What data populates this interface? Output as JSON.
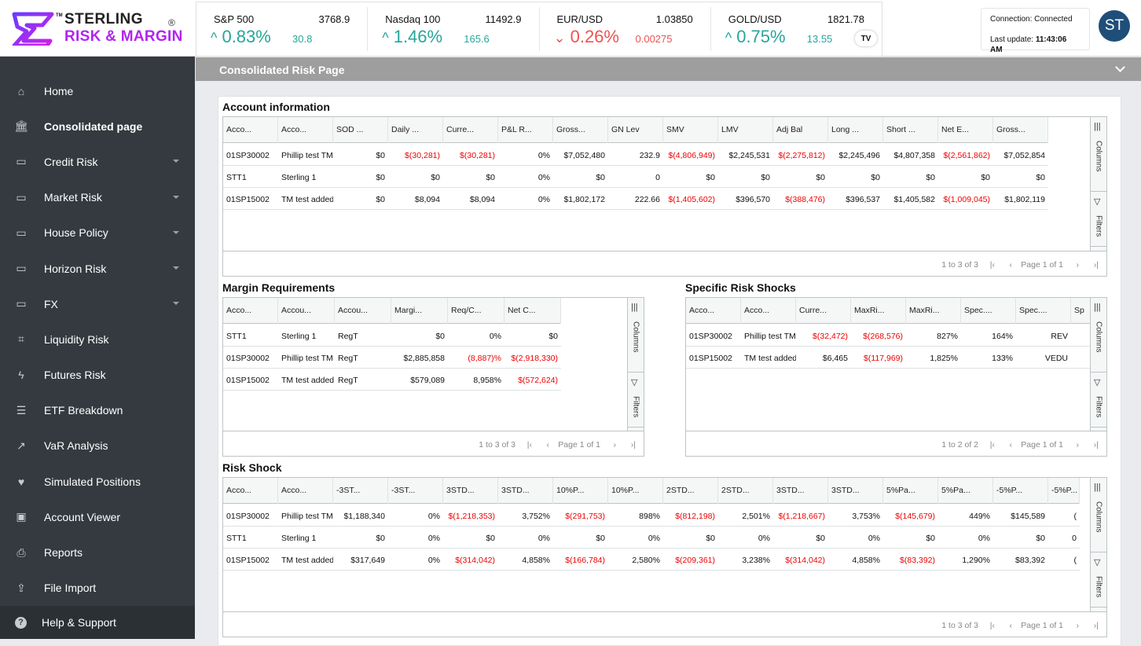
{
  "logo": {
    "line1": "STERLING",
    "line2": "RISK & MARGIN",
    "tm": "TM",
    "reg": "®"
  },
  "tickers": [
    {
      "name": "S&P 500",
      "price": "3768.9",
      "pct": "0.83%",
      "chg": "30.8",
      "dir": "up",
      "arrow": "^"
    },
    {
      "name": "Nasdaq 100",
      "price": "11492.9",
      "pct": "1.46%",
      "chg": "165.6",
      "dir": "up",
      "arrow": "^"
    },
    {
      "name": "EUR/USD",
      "price": "1.03850",
      "pct": "0.26%",
      "chg": "0.00275",
      "dir": "down",
      "arrow": "⌄"
    },
    {
      "name": "GOLD/USD",
      "price": "1821.78",
      "pct": "0.75%",
      "chg": "13.55",
      "dir": "up",
      "arrow": "^",
      "price_color": "up"
    }
  ],
  "tv_badge": "TV",
  "connection": {
    "label": "Connection:",
    "status": "Connected",
    "update_label": "Last update:",
    "time": "11:43:06 AM"
  },
  "avatar": "ST",
  "page_title": "Consolidated Risk Page",
  "nav": [
    {
      "label": "Home",
      "icon": "home-icon",
      "glyph": "⌂"
    },
    {
      "label": "Consolidated page",
      "icon": "bank-icon",
      "glyph": "🏛",
      "active": true
    },
    {
      "label": "Credit Risk",
      "icon": "folder-icon",
      "glyph": "▭",
      "caret": true
    },
    {
      "label": "Market Risk",
      "icon": "folder-icon",
      "glyph": "▭",
      "caret": true
    },
    {
      "label": "House Policy",
      "icon": "folder-icon",
      "glyph": "▭",
      "caret": true
    },
    {
      "label": "Horizon Risk",
      "icon": "folder-icon",
      "glyph": "▭",
      "caret": true
    },
    {
      "label": "FX",
      "icon": "folder-icon",
      "glyph": "▭",
      "caret": true
    },
    {
      "label": "Liquidity Risk",
      "icon": "crop-icon",
      "glyph": "⌗"
    },
    {
      "label": "Futures Risk",
      "icon": "bolt-icon",
      "glyph": "ϟ"
    },
    {
      "label": "ETF Breakdown",
      "icon": "list-icon",
      "glyph": "☰"
    },
    {
      "label": "VaR Analysis",
      "icon": "trend-icon",
      "glyph": "↗"
    },
    {
      "label": "Simulated Positions",
      "icon": "heart-icon",
      "glyph": "♥"
    },
    {
      "label": "Account Viewer",
      "icon": "account-box-icon",
      "glyph": "▣"
    },
    {
      "label": "Reports",
      "icon": "print-icon",
      "glyph": "⎙"
    },
    {
      "label": "File Import",
      "icon": "upload-icon",
      "glyph": "⇪"
    }
  ],
  "help": {
    "label": "Help & Support",
    "glyph": "?"
  },
  "side_panel": {
    "columns": "Columns",
    "filters": "Filters"
  },
  "account_info": {
    "title": "Account information",
    "headers": [
      "Acco...",
      "Acco...",
      "SOD ...",
      "Daily ...",
      "Curre...",
      "P&L R...",
      "Gross...",
      "GN Lev",
      "SMV",
      "LMV",
      "Adj Bal",
      "Long ...",
      "Short ...",
      "Net E...",
      "Gross..."
    ],
    "rows": [
      [
        "01SP30002",
        "Phillip test TM",
        "$0",
        "$(30,281)",
        "$(30,281)",
        "0%",
        "$7,052,480",
        "232.9",
        "$(4,806,949)",
        "$2,245,531",
        "$(2,275,812)",
        "$2,245,496",
        "$4,807,358",
        "$(2,561,862)",
        "$7,052,854"
      ],
      [
        "STT1",
        "Sterling 1",
        "$0",
        "$0",
        "$0",
        "0%",
        "$0",
        "0",
        "$0",
        "$0",
        "$0",
        "$0",
        "$0",
        "$0",
        "$0"
      ],
      [
        "01SP15002",
        "TM test added",
        "$0",
        "$8,094",
        "$8,094",
        "0%",
        "$1,802,172",
        "222.66",
        "$(1,405,602)",
        "$396,570",
        "$(388,476)",
        "$396,537",
        "$1,405,582",
        "$(1,009,045)",
        "$1,802,119"
      ]
    ],
    "footer": {
      "count": "1 to 3 of 3",
      "page": "Page 1 of 1"
    }
  },
  "margin": {
    "title": "Margin Requirements",
    "headers": [
      "Acco...",
      "Accou...",
      "Accou...",
      "Margi...",
      "Req/C...",
      "Net C..."
    ],
    "rows": [
      [
        "STT1",
        "Sterling 1",
        "RegT",
        "$0",
        "0%",
        "$0"
      ],
      [
        "01SP30002",
        "Phillip test TM",
        "RegT",
        "$2,885,858",
        "(8,887)%",
        "$(2,918,330)"
      ],
      [
        "01SP15002",
        "TM test added",
        "RegT",
        "$579,089",
        "8,958%",
        "$(572,624)"
      ]
    ],
    "footer": {
      "count": "1 to 3 of 3",
      "page": "Page 1 of 1"
    }
  },
  "specific": {
    "title": "Specific Risk Shocks",
    "headers": [
      "Acco...",
      "Acco...",
      "Curre...",
      "MaxRi...",
      "MaxRi...",
      "Spec....",
      "Spec....",
      "Sp"
    ],
    "rows": [
      [
        "01SP30002",
        "Phillip test TM",
        "$(32,472)",
        "$(268,576)",
        "827%",
        "164%",
        "REV",
        ""
      ],
      [
        "01SP15002",
        "TM test added",
        "$6,465",
        "$(117,969)",
        "1,825%",
        "133%",
        "VEDU",
        ""
      ]
    ],
    "footer": {
      "count": "1 to 2 of 2",
      "page": "Page 1 of 1"
    }
  },
  "risk_shock": {
    "title": "Risk Shock",
    "headers": [
      "Acco...",
      "Acco...",
      "-3ST...",
      "-3ST...",
      "3STD...",
      "3STD...",
      "10%P...",
      "10%P...",
      "2STD...",
      "2STD...",
      "3STD...",
      "3STD...",
      "5%Pa...",
      "5%Pa...",
      "-5%P...",
      "-5%P..."
    ],
    "rows": [
      [
        "01SP30002",
        "Phillip test TM",
        "$1,188,340",
        "0%",
        "$(1,218,353)",
        "3,752%",
        "$(291,753)",
        "898%",
        "$(812,198)",
        "2,501%",
        "$(1,218,667)",
        "3,753%",
        "$(145,679)",
        "449%",
        "$145,589",
        "("
      ],
      [
        "STT1",
        "Sterling 1",
        "$0",
        "0%",
        "$0",
        "0%",
        "$0",
        "0%",
        "$0",
        "0%",
        "$0",
        "0%",
        "$0",
        "0%",
        "$0",
        "0"
      ],
      [
        "01SP15002",
        "TM test added",
        "$317,649",
        "0%",
        "$(314,042)",
        "4,858%",
        "$(166,784)",
        "2,580%",
        "$(209,361)",
        "3,238%",
        "$(314,042)",
        "4,858%",
        "$(83,392)",
        "1,290%",
        "$83,392",
        "("
      ]
    ],
    "footer": {
      "count": "1 to 3 of 3",
      "page": "Page 1 of 1"
    }
  },
  "colors": {
    "sidebar": "#343a40",
    "accent_up": "#26a69a",
    "accent_down": "#ef5350",
    "negative": "#ee0000",
    "logo_purple": "#b224ef",
    "logo_blue": "#2f6bff"
  }
}
